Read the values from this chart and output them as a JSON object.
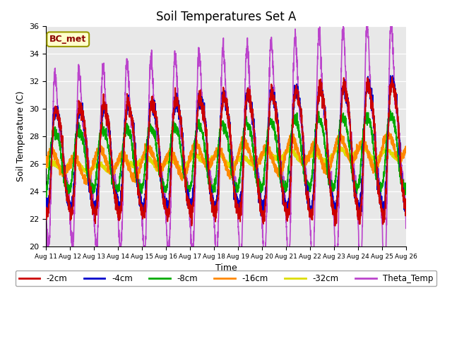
{
  "title": "Soil Temperatures Set A",
  "xlabel": "Time",
  "ylabel": "Soil Temperature (C)",
  "ylim": [
    20,
    36
  ],
  "xlim": [
    0,
    15
  ],
  "x_tick_labels": [
    "Aug 11",
    "Aug 12",
    "Aug 13",
    "Aug 14",
    "Aug 15",
    "Aug 16",
    "Aug 17",
    "Aug 18",
    "Aug 19",
    "Aug 20",
    "Aug 21",
    "Aug 22",
    "Aug 23",
    "Aug 24",
    "Aug 25",
    "Aug 26"
  ],
  "annotation": "BC_met",
  "bg_color": "#e8e8e8",
  "colors": {
    "-2cm": "#cc0000",
    "-4cm": "#0000cc",
    "-8cm": "#00aa00",
    "-16cm": "#ff8800",
    "-32cm": "#dddd00",
    "Theta_Temp": "#bb44cc"
  }
}
